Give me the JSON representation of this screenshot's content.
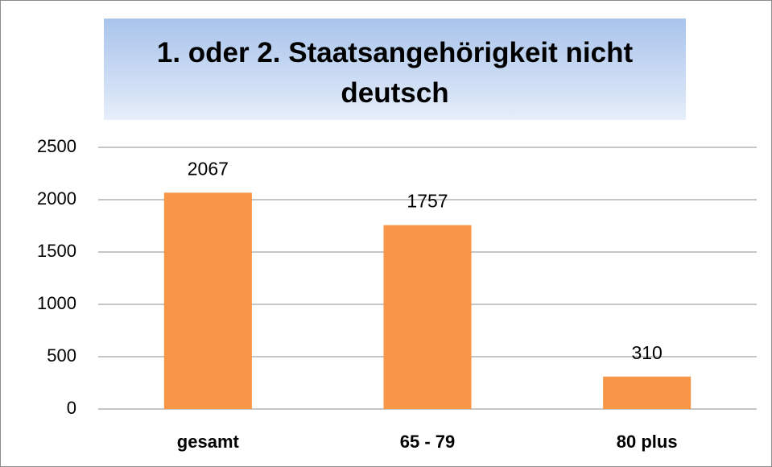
{
  "chart_data": {
    "type": "bar",
    "title": "1. oder 2. Staatsangehörigkeit nicht deutsch",
    "categories": [
      "gesamt",
      "65 - 79",
      "80 plus"
    ],
    "values": [
      2067,
      1757,
      310
    ],
    "color": "#f79646",
    "ylim": [
      0,
      2500
    ],
    "yticks": [
      0,
      500,
      1000,
      1500,
      2000,
      2500
    ],
    "grid": true
  }
}
